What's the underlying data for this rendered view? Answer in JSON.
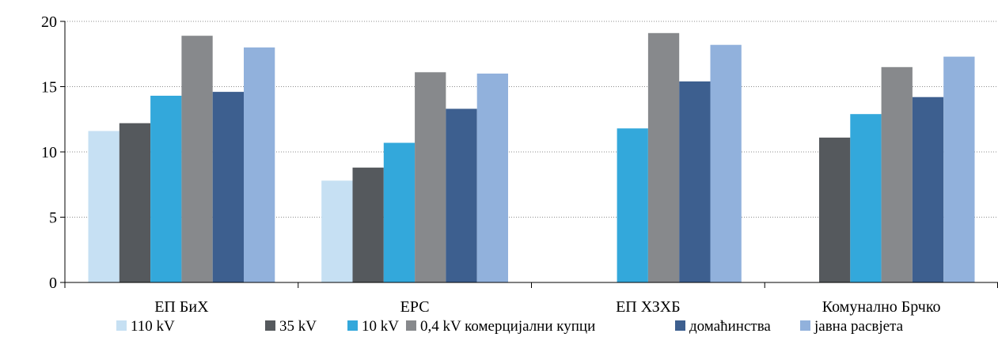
{
  "chart_data": {
    "type": "bar",
    "title": "",
    "xlabel": "",
    "ylabel": "",
    "ylim": [
      0,
      20
    ],
    "yticks": [
      "0",
      "5",
      "10",
      "15",
      "20"
    ],
    "grid": "horizontal dotted",
    "legend_position": "bottom",
    "categories": [
      "ЕП БиХ",
      "ЕРС",
      "ЕП ХЗХБ",
      "Комунално Брчко"
    ],
    "series": [
      {
        "name": "110 kV",
        "color": "#c6e0f3",
        "values": [
          11.6,
          7.8,
          null,
          null
        ]
      },
      {
        "name": "35 kV",
        "color": "#55595d",
        "values": [
          12.2,
          8.8,
          null,
          11.1
        ]
      },
      {
        "name": "10 kV",
        "color": "#33a8db",
        "values": [
          14.3,
          10.7,
          11.8,
          12.9
        ]
      },
      {
        "name": "0,4 kV комерцијални купци",
        "color": "#87898c",
        "values": [
          18.9,
          16.1,
          19.1,
          16.5
        ]
      },
      {
        "name": "домаћинства",
        "color": "#3d5f8f",
        "values": [
          14.6,
          13.3,
          15.4,
          14.2
        ]
      },
      {
        "name": "јавна расвјета",
        "color": "#91b1dc",
        "values": [
          18.0,
          16.0,
          18.2,
          17.3
        ]
      }
    ]
  }
}
